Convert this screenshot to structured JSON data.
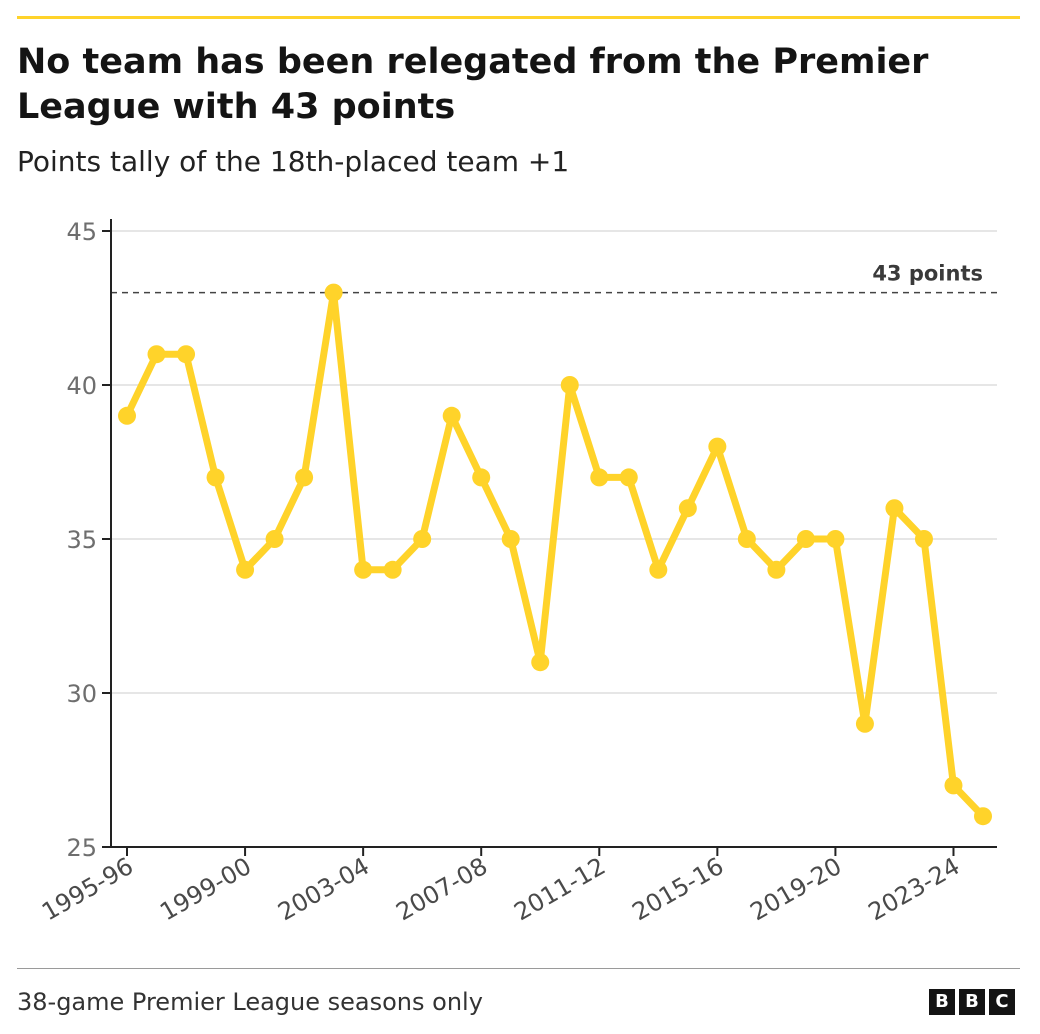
{
  "header": {
    "title": "No team has been relegated from the Premier League with 43 points",
    "subtitle": "Points tally of the 18th-placed team +1"
  },
  "footer": {
    "note": "38-game Premier League seasons only",
    "logo_letters": [
      "B",
      "B",
      "C"
    ]
  },
  "colors": {
    "accent": "#ffd32a",
    "text": "#141414",
    "grid": "#e6e6e6",
    "axis": "#222222"
  },
  "chart_data": {
    "type": "line",
    "title": "No team has been relegated from the Premier League with 43 points",
    "subtitle": "Points tally of the 18th-placed team +1",
    "xlabel": "",
    "ylabel": "",
    "ylim": [
      25,
      45
    ],
    "yticks": [
      25,
      30,
      35,
      40,
      45
    ],
    "grid": true,
    "x": [
      "1995-96",
      "1996-97",
      "1997-98",
      "1998-99",
      "1999-00",
      "2000-01",
      "2001-02",
      "2002-03",
      "2003-04",
      "2004-05",
      "2005-06",
      "2006-07",
      "2007-08",
      "2008-09",
      "2009-10",
      "2010-11",
      "2011-12",
      "2012-13",
      "2013-14",
      "2014-15",
      "2015-16",
      "2016-17",
      "2017-18",
      "2018-19",
      "2019-20",
      "2020-21",
      "2021-22",
      "2022-23",
      "2023-24",
      "2024-25"
    ],
    "xtick_labels": [
      "1995-96",
      "1999-00",
      "2003-04",
      "2007-08",
      "2011-12",
      "2015-16",
      "2019-20",
      "2023-24"
    ],
    "series": [
      {
        "values": [
          39,
          41,
          41,
          37,
          34,
          35,
          37,
          43,
          34,
          34,
          35,
          39,
          37,
          35,
          31,
          40,
          37,
          37,
          34,
          36,
          38,
          35,
          34,
          35,
          35,
          29,
          36,
          35,
          27,
          26
        ]
      }
    ],
    "reference_line": {
      "value": 43,
      "label": "43 points"
    }
  }
}
